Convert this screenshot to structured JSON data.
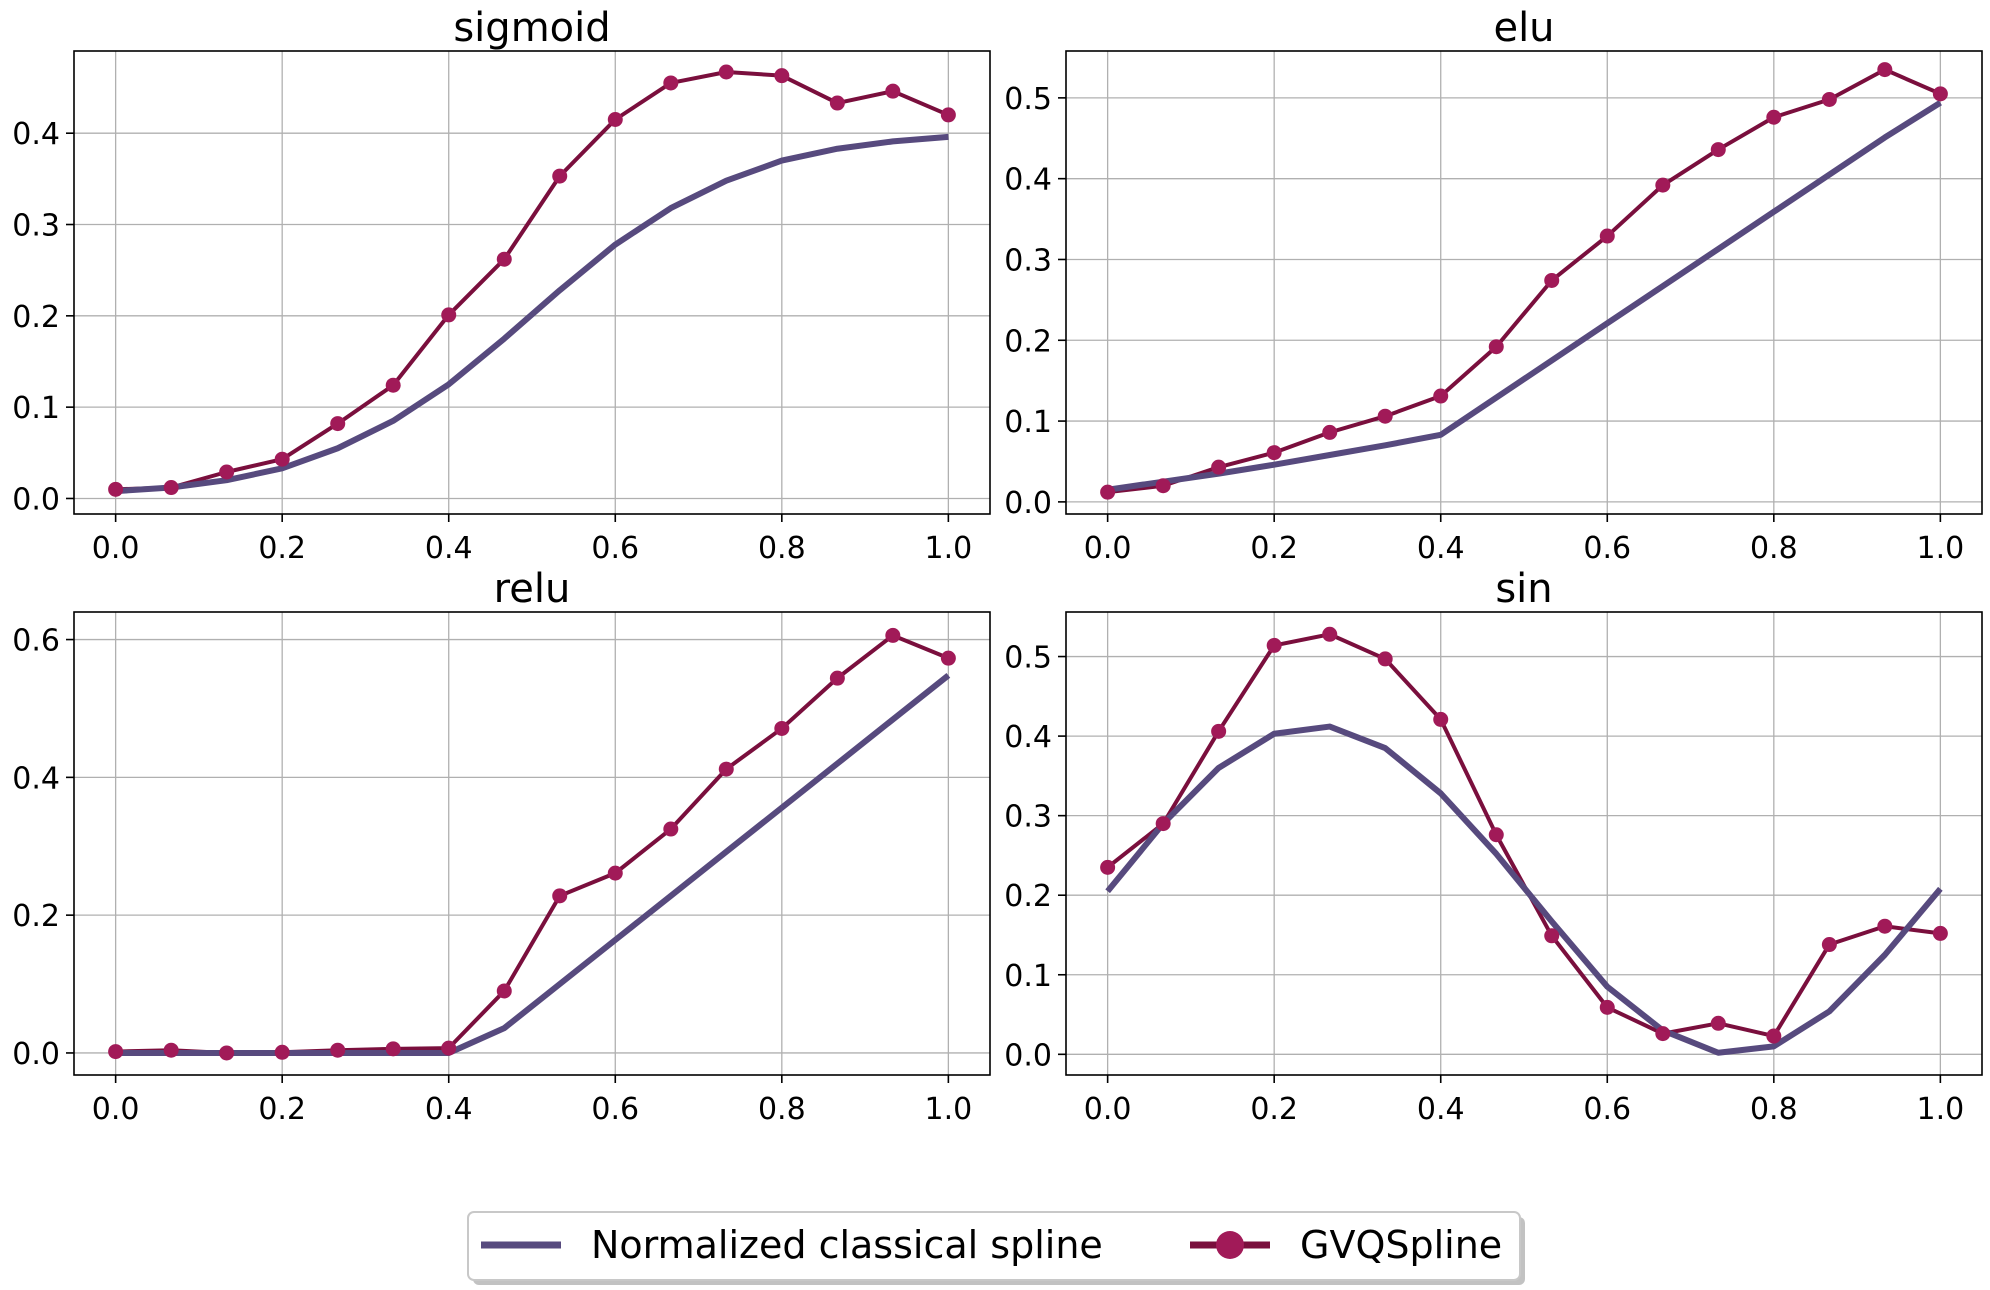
{
  "colors": {
    "classical": "#574a7e",
    "gvq_line": "#7a0f3d",
    "gvq_marker": "#a11a58",
    "grid": "#b0b0b0",
    "axes": "#000000"
  },
  "legend": {
    "classical_label": "Normalized classical spline",
    "gvq_label": "GVQSpline",
    "placement": "bottom-center"
  },
  "chart_data": [
    {
      "type": "line",
      "title": "sigmoid",
      "xlabel": "",
      "ylabel": "",
      "xlim": [
        -0.05,
        1.05
      ],
      "ylim": [
        -0.017,
        0.49
      ],
      "xticks": [
        0.0,
        0.2,
        0.4,
        0.6,
        0.8,
        1.0
      ],
      "xtick_labels": [
        "0.0",
        "0.2",
        "0.4",
        "0.6",
        "0.8",
        "1.0"
      ],
      "yticks": [
        0.0,
        0.1,
        0.2,
        0.3,
        0.4
      ],
      "ytick_labels": [
        "0.0",
        "0.1",
        "0.2",
        "0.3",
        "0.4"
      ],
      "grid": true,
      "x": [
        0.0,
        0.0667,
        0.1333,
        0.2,
        0.2667,
        0.3333,
        0.4,
        0.4667,
        0.5333,
        0.6,
        0.6667,
        0.7333,
        0.8,
        0.8667,
        0.9333,
        1.0
      ],
      "series": [
        {
          "name": "Normalized classical spline",
          "values": [
            0.008,
            0.012,
            0.02,
            0.033,
            0.055,
            0.085,
            0.125,
            0.175,
            0.228,
            0.278,
            0.318,
            0.348,
            0.37,
            0.383,
            0.391,
            0.396
          ]
        },
        {
          "name": "GVQSpline",
          "values": [
            0.01,
            0.012,
            0.029,
            0.043,
            0.082,
            0.124,
            0.201,
            0.262,
            0.353,
            0.415,
            0.455,
            0.467,
            0.463,
            0.433,
            0.446,
            0.42
          ]
        }
      ]
    },
    {
      "type": "line",
      "title": "elu",
      "xlabel": "",
      "ylabel": "",
      "xlim": [
        -0.05,
        1.05
      ],
      "ylim": [
        -0.015,
        0.558
      ],
      "xticks": [
        0.0,
        0.2,
        0.4,
        0.6,
        0.8,
        1.0
      ],
      "xtick_labels": [
        "0.0",
        "0.2",
        "0.4",
        "0.6",
        "0.8",
        "1.0"
      ],
      "yticks": [
        0.0,
        0.1,
        0.2,
        0.3,
        0.4,
        0.5
      ],
      "ytick_labels": [
        "0.0",
        "0.1",
        "0.2",
        "0.3",
        "0.4",
        "0.5"
      ],
      "grid": true,
      "x": [
        0.0,
        0.0667,
        0.1333,
        0.2,
        0.2667,
        0.3333,
        0.4,
        0.4667,
        0.5333,
        0.6,
        0.6667,
        0.7333,
        0.8,
        0.8667,
        0.9333,
        1.0
      ],
      "series": [
        {
          "name": "Normalized classical spline",
          "values": [
            0.015,
            0.025,
            0.035,
            0.046,
            0.058,
            0.07,
            0.083,
            0.129,
            0.175,
            0.221,
            0.267,
            0.313,
            0.359,
            0.405,
            0.451,
            0.494
          ]
        },
        {
          "name": "GVQSpline",
          "values": [
            0.012,
            0.02,
            0.043,
            0.061,
            0.086,
            0.106,
            0.131,
            0.192,
            0.274,
            0.329,
            0.392,
            0.436,
            0.476,
            0.498,
            0.535,
            0.505
          ]
        }
      ]
    },
    {
      "type": "line",
      "title": "relu",
      "xlabel": "",
      "ylabel": "",
      "xlim": [
        -0.05,
        1.05
      ],
      "ylim": [
        -0.032,
        0.64
      ],
      "xticks": [
        0.0,
        0.2,
        0.4,
        0.6,
        0.8,
        1.0
      ],
      "xtick_labels": [
        "0.0",
        "0.2",
        "0.4",
        "0.6",
        "0.8",
        "1.0"
      ],
      "yticks": [
        0.0,
        0.2,
        0.4,
        0.6
      ],
      "ytick_labels": [
        "0.0",
        "0.2",
        "0.4",
        "0.6"
      ],
      "grid": true,
      "x": [
        0.0,
        0.0667,
        0.1333,
        0.2,
        0.2667,
        0.3333,
        0.4,
        0.4667,
        0.5333,
        0.6,
        0.6667,
        0.7333,
        0.8,
        0.8667,
        0.9333,
        1.0
      ],
      "series": [
        {
          "name": "Normalized classical spline",
          "values": [
            0.0,
            0.0,
            0.0,
            0.0,
            0.0,
            0.0,
            0.0,
            0.036,
            0.1,
            0.164,
            0.228,
            0.292,
            0.356,
            0.42,
            0.484,
            0.548
          ]
        },
        {
          "name": "GVQSpline",
          "values": [
            0.002,
            0.004,
            0.0,
            0.001,
            0.004,
            0.006,
            0.007,
            0.09,
            0.228,
            0.261,
            0.325,
            0.412,
            0.471,
            0.544,
            0.606,
            0.573
          ]
        }
      ]
    },
    {
      "type": "line",
      "title": "sin",
      "xlabel": "",
      "ylabel": "",
      "xlim": [
        -0.05,
        1.05
      ],
      "ylim": [
        -0.026,
        0.556
      ],
      "xticks": [
        0.0,
        0.2,
        0.4,
        0.6,
        0.8,
        1.0
      ],
      "xtick_labels": [
        "0.0",
        "0.2",
        "0.4",
        "0.6",
        "0.8",
        "1.0"
      ],
      "yticks": [
        0.0,
        0.1,
        0.2,
        0.3,
        0.4,
        0.5
      ],
      "ytick_labels": [
        "0.0",
        "0.1",
        "0.2",
        "0.3",
        "0.4",
        "0.5"
      ],
      "grid": true,
      "x": [
        0.0,
        0.0667,
        0.1333,
        0.2,
        0.2667,
        0.3333,
        0.4,
        0.4667,
        0.5333,
        0.6,
        0.6667,
        0.7333,
        0.8,
        0.8667,
        0.9333,
        1.0
      ],
      "series": [
        {
          "name": "Normalized classical spline",
          "values": [
            0.205,
            0.29,
            0.36,
            0.403,
            0.412,
            0.385,
            0.328,
            0.252,
            0.167,
            0.085,
            0.03,
            0.002,
            0.01,
            0.054,
            0.125,
            0.208
          ]
        },
        {
          "name": "GVQSpline",
          "values": [
            0.235,
            0.29,
            0.406,
            0.514,
            0.528,
            0.497,
            0.421,
            0.276,
            0.149,
            0.059,
            0.026,
            0.039,
            0.023,
            0.138,
            0.161,
            0.152
          ]
        }
      ]
    }
  ]
}
